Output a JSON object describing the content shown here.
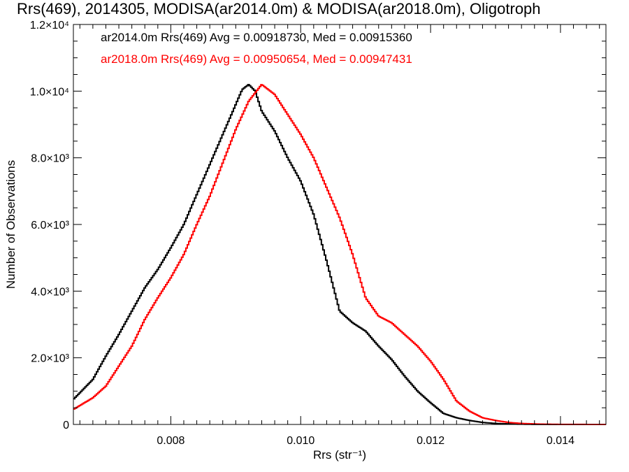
{
  "chart_data": {
    "type": "line",
    "title": "Rrs(469), 2014305, MODISA(ar2014.0m) & MODISA(ar2018.0m), Oligotroph",
    "xlabel": "Rrs (str⁻¹)",
    "ylabel": "Number of Observations",
    "xlim": [
      0.0065,
      0.0147
    ],
    "ylim": [
      0,
      12000
    ],
    "x_ticks": [
      {
        "value": 0.008,
        "label": "0.008"
      },
      {
        "value": 0.01,
        "label": "0.010"
      },
      {
        "value": 0.012,
        "label": "0.012"
      },
      {
        "value": 0.014,
        "label": "0.014"
      }
    ],
    "y_ticks": [
      {
        "value": 0,
        "label": "0"
      },
      {
        "value": 2000,
        "label": "2.0×10³"
      },
      {
        "value": 4000,
        "label": "4.0×10³"
      },
      {
        "value": 6000,
        "label": "6.0×10³"
      },
      {
        "value": 8000,
        "label": "8.0×10³"
      },
      {
        "value": 10000,
        "label": "1.0×10⁴"
      },
      {
        "value": 12000,
        "label": "1.2×10⁴"
      }
    ],
    "grid": false,
    "legend_position": "top-left",
    "series": [
      {
        "name": "ar2014.0m",
        "color": "#000000",
        "step": true,
        "legend": "ar2014.0m Rrs(469) Avg = 0.00918730, Med = 0.00915360",
        "points": [
          [
            0.0065,
            750
          ],
          [
            0.0068,
            1350
          ],
          [
            0.007,
            2050
          ],
          [
            0.0072,
            2700
          ],
          [
            0.0074,
            3400
          ],
          [
            0.0076,
            4100
          ],
          [
            0.0078,
            4650
          ],
          [
            0.008,
            5300
          ],
          [
            0.0082,
            6000
          ],
          [
            0.0084,
            6900
          ],
          [
            0.0086,
            7800
          ],
          [
            0.0088,
            8700
          ],
          [
            0.009,
            9600
          ],
          [
            0.0091,
            10050
          ],
          [
            0.0092,
            10200
          ],
          [
            0.0093,
            10000
          ],
          [
            0.0094,
            9400
          ],
          [
            0.0096,
            8800
          ],
          [
            0.0098,
            8000
          ],
          [
            0.01,
            7300
          ],
          [
            0.0102,
            6300
          ],
          [
            0.0104,
            4900
          ],
          [
            0.0106,
            3400
          ],
          [
            0.0108,
            3050
          ],
          [
            0.011,
            2800
          ],
          [
            0.0112,
            2350
          ],
          [
            0.0114,
            1950
          ],
          [
            0.0116,
            1450
          ],
          [
            0.0118,
            1000
          ],
          [
            0.012,
            650
          ],
          [
            0.0122,
            330
          ],
          [
            0.0124,
            200
          ],
          [
            0.0126,
            120
          ],
          [
            0.0128,
            60
          ],
          [
            0.013,
            30
          ],
          [
            0.0133,
            10
          ],
          [
            0.0136,
            3
          ],
          [
            0.014,
            0
          ],
          [
            0.0147,
            0
          ]
        ]
      },
      {
        "name": "ar2018.0m",
        "color": "#ff0000",
        "step": true,
        "legend": "ar2018.0m Rrs(469) Avg = 0.00950654, Med = 0.00947431",
        "points": [
          [
            0.0065,
            450
          ],
          [
            0.0068,
            800
          ],
          [
            0.007,
            1150
          ],
          [
            0.0072,
            1750
          ],
          [
            0.0074,
            2350
          ],
          [
            0.0076,
            3150
          ],
          [
            0.0078,
            3800
          ],
          [
            0.008,
            4400
          ],
          [
            0.0082,
            5100
          ],
          [
            0.0084,
            6000
          ],
          [
            0.0086,
            6850
          ],
          [
            0.0088,
            7850
          ],
          [
            0.009,
            8850
          ],
          [
            0.0092,
            9700
          ],
          [
            0.0094,
            10200
          ],
          [
            0.0096,
            9900
          ],
          [
            0.0098,
            9300
          ],
          [
            0.01,
            8700
          ],
          [
            0.0102,
            8000
          ],
          [
            0.0104,
            7100
          ],
          [
            0.0106,
            6200
          ],
          [
            0.0108,
            5100
          ],
          [
            0.011,
            3800
          ],
          [
            0.0112,
            3250
          ],
          [
            0.0114,
            3050
          ],
          [
            0.0116,
            2700
          ],
          [
            0.0118,
            2350
          ],
          [
            0.012,
            1900
          ],
          [
            0.0122,
            1350
          ],
          [
            0.0124,
            700
          ],
          [
            0.0126,
            400
          ],
          [
            0.0128,
            200
          ],
          [
            0.013,
            120
          ],
          [
            0.0132,
            60
          ],
          [
            0.0134,
            30
          ],
          [
            0.0137,
            10
          ],
          [
            0.014,
            3
          ],
          [
            0.0147,
            0
          ]
        ]
      }
    ]
  }
}
